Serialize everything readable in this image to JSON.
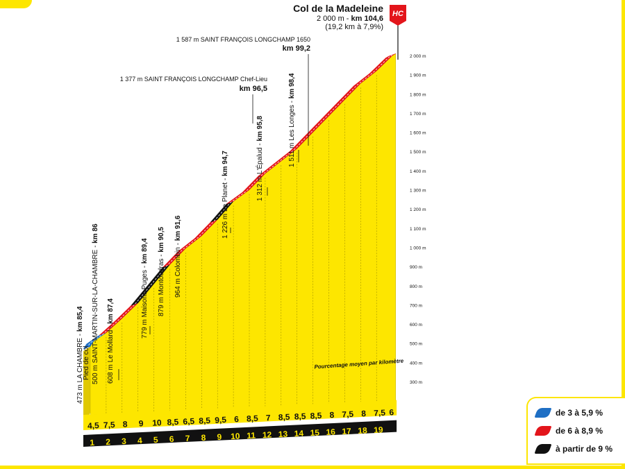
{
  "chart_data": {
    "type": "area",
    "title": "Col de la Madeleine",
    "summit": {
      "alt_prefix": "2 000 m - ",
      "km_label": "km 104,6",
      "stats": "(19,2 km à 7,9%)",
      "category": "HC"
    },
    "yaxis": {
      "ticks": [
        "300 m",
        "400 m",
        "500 m",
        "600 m",
        "700 m",
        "800 m",
        "900 m",
        "1 000 m",
        "1 100 m",
        "1 200 m",
        "1 300 m",
        "1 400 m",
        "1 500 m",
        "1 600 m",
        "1 700 m",
        "1 800 m",
        "1 900 m",
        "2 000 m"
      ],
      "ylim": [
        300,
        2000
      ]
    },
    "x": [
      "1",
      "2",
      "3",
      "4",
      "5",
      "6",
      "7",
      "8",
      "9",
      "10",
      "11",
      "12",
      "13",
      "14",
      "15",
      "16",
      "17",
      "18",
      "19"
    ],
    "gradients": [
      "4,5",
      "7,5",
      "8",
      "9",
      "10",
      "8,5",
      "6,5",
      "8,5",
      "9,5",
      "6",
      "8,5",
      "7",
      "8,5",
      "8,5",
      "8,5",
      "8",
      "7,5",
      "8",
      "7,5",
      "6"
    ],
    "gradient_colors": [
      "blue",
      "red",
      "red",
      "black",
      "black",
      "red",
      "red",
      "red",
      "black",
      "red",
      "red",
      "red",
      "red",
      "red",
      "red",
      "red",
      "red",
      "red",
      "red",
      "red"
    ],
    "profile_km": [
      0,
      0.2,
      1,
      2,
      3,
      4,
      5,
      6,
      7,
      8,
      9,
      10,
      11,
      12,
      13,
      14,
      15,
      16,
      17,
      18,
      19,
      19.2
    ],
    "profile_alt": [
      473,
      500,
      545,
      620,
      700,
      800,
      900,
      985,
      1050,
      1135,
      1230,
      1290,
      1375,
      1440,
      1505,
      1590,
      1675,
      1760,
      1845,
      1910,
      1990,
      2000
    ],
    "annotation": "Pourcentage moyen par kilomètre",
    "waypoints": [
      {
        "text": "473 m LA CHAMBRE - ",
        "km": "km 85,4"
      },
      {
        "text": "Pied de col",
        "km": ""
      },
      {
        "text": "500 m SAINT-MARTIN-SUR-LA-CHAMBRE - ",
        "km": "km 86"
      },
      {
        "text": "608 m Le Mollard - ",
        "km": "km 87,4"
      },
      {
        "text": "779 m Maisons Puges - ",
        "km": "km 89,4"
      },
      {
        "text": "879 m Montoudras - ",
        "km": "km 90,5"
      },
      {
        "text": "964 m Colombin - ",
        "km": "km 91,6"
      },
      {
        "text": "1 226 m Le Planet - ",
        "km": "km 94,7"
      },
      {
        "text": "1 312 m L'Épalud - ",
        "km": "km 95,8"
      },
      {
        "text": "1 511 m Les Longes - ",
        "km": "km 98,4"
      },
      {
        "text": "1 377 m SAINT FRANÇOIS LONGCHAMP Chef-Lieu",
        "km": "km 96,5"
      },
      {
        "text": "1 587 m SAINT FRANÇOIS LONGCHAMP 1650",
        "km": "km 99,2"
      }
    ],
    "legend": [
      {
        "label": "de 3 à 5,9 %",
        "color": "#1f6fc4"
      },
      {
        "label": "de 6 à 8,9 %",
        "color": "#e3151b"
      },
      {
        "label": "à partir de 9 %",
        "color": "#111111"
      }
    ],
    "colors": {
      "blue": "#1f6fc4",
      "red": "#e3151b",
      "black": "#111111",
      "yellow": "#fde600"
    }
  }
}
